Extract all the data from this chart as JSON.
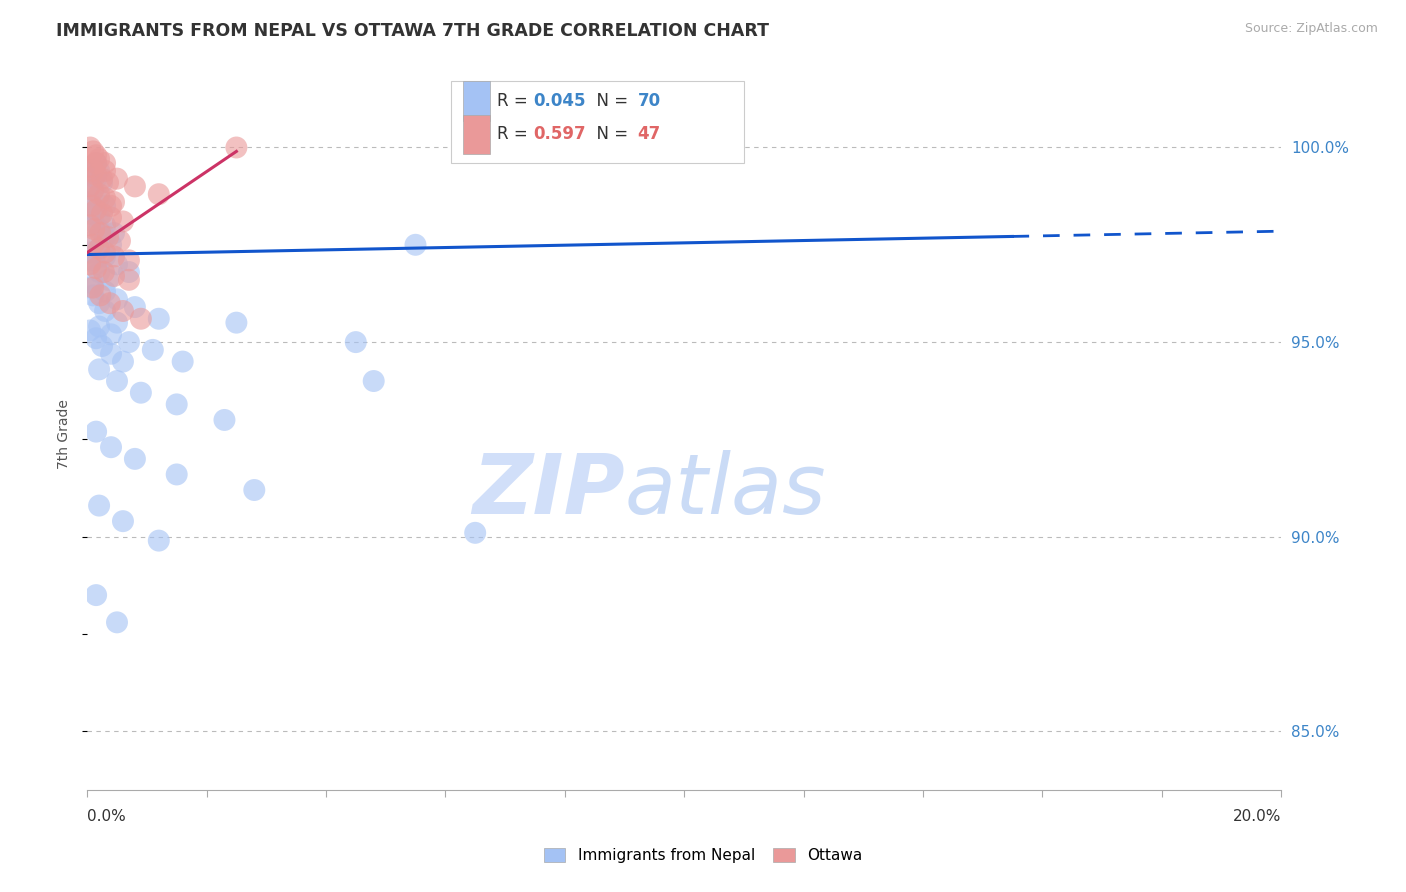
{
  "title": "IMMIGRANTS FROM NEPAL VS OTTAWA 7TH GRADE CORRELATION CHART",
  "source": "Source: ZipAtlas.com",
  "ylabel": "7th Grade",
  "y_ticks": [
    85.0,
    90.0,
    95.0,
    100.0
  ],
  "x_range": [
    0.0,
    20.0
  ],
  "y_range": [
    83.5,
    101.8
  ],
  "blue_R": 0.045,
  "blue_N": 70,
  "pink_R": 0.597,
  "pink_N": 47,
  "blue_color": "#a4c2f4",
  "pink_color": "#ea9999",
  "blue_line_color": "#1155cc",
  "pink_line_color": "#cc3366",
  "background_color": "#ffffff",
  "watermark_color": "#c9daf8",
  "blue_line_x0": 0.0,
  "blue_line_y0": 97.25,
  "blue_line_x1": 20.0,
  "blue_line_y1": 97.85,
  "blue_solid_end": 15.5,
  "pink_line_x0": 0.0,
  "pink_line_y0": 97.3,
  "pink_line_x1": 2.5,
  "pink_line_y1": 99.9,
  "blue_dots": [
    [
      0.05,
      99.5
    ],
    [
      0.1,
      99.3
    ],
    [
      0.15,
      99.6
    ],
    [
      0.2,
      99.4
    ],
    [
      0.25,
      99.1
    ],
    [
      0.05,
      99.0
    ],
    [
      0.1,
      98.9
    ],
    [
      0.15,
      99.2
    ],
    [
      0.2,
      98.7
    ],
    [
      0.3,
      98.5
    ],
    [
      0.05,
      98.3
    ],
    [
      0.1,
      98.1
    ],
    [
      0.2,
      97.9
    ],
    [
      0.3,
      97.7
    ],
    [
      0.4,
      97.5
    ],
    [
      0.05,
      97.3
    ],
    [
      0.1,
      97.1
    ],
    [
      0.15,
      97.0
    ],
    [
      0.2,
      96.8
    ],
    [
      0.35,
      96.6
    ],
    [
      0.05,
      96.4
    ],
    [
      0.1,
      96.2
    ],
    [
      0.2,
      96.0
    ],
    [
      0.3,
      95.8
    ],
    [
      0.5,
      95.5
    ],
    [
      0.05,
      95.3
    ],
    [
      0.15,
      95.1
    ],
    [
      0.25,
      94.9
    ],
    [
      0.4,
      94.7
    ],
    [
      0.6,
      94.5
    ],
    [
      0.05,
      98.6
    ],
    [
      0.1,
      98.4
    ],
    [
      0.2,
      98.2
    ],
    [
      0.3,
      98.0
    ],
    [
      0.45,
      97.8
    ],
    [
      0.1,
      97.6
    ],
    [
      0.2,
      97.4
    ],
    [
      0.3,
      97.2
    ],
    [
      0.5,
      97.0
    ],
    [
      0.7,
      96.8
    ],
    [
      0.1,
      96.5
    ],
    [
      0.3,
      96.3
    ],
    [
      0.5,
      96.1
    ],
    [
      0.8,
      95.9
    ],
    [
      1.2,
      95.6
    ],
    [
      0.2,
      95.4
    ],
    [
      0.4,
      95.2
    ],
    [
      0.7,
      95.0
    ],
    [
      1.1,
      94.8
    ],
    [
      1.6,
      94.5
    ],
    [
      0.2,
      94.3
    ],
    [
      0.5,
      94.0
    ],
    [
      0.9,
      93.7
    ],
    [
      1.5,
      93.4
    ],
    [
      2.3,
      93.0
    ],
    [
      0.15,
      92.7
    ],
    [
      0.4,
      92.3
    ],
    [
      0.8,
      92.0
    ],
    [
      1.5,
      91.6
    ],
    [
      2.8,
      91.2
    ],
    [
      0.2,
      90.8
    ],
    [
      0.6,
      90.4
    ],
    [
      1.2,
      89.9
    ],
    [
      2.5,
      95.5
    ],
    [
      4.5,
      95.0
    ],
    [
      0.15,
      88.5
    ],
    [
      0.5,
      87.8
    ],
    [
      4.8,
      94.0
    ],
    [
      6.5,
      90.1
    ],
    [
      5.5,
      97.5
    ]
  ],
  "pink_dots": [
    [
      0.05,
      100.0
    ],
    [
      0.1,
      99.9
    ],
    [
      0.15,
      99.8
    ],
    [
      0.2,
      99.7
    ],
    [
      0.3,
      99.6
    ],
    [
      0.05,
      99.5
    ],
    [
      0.1,
      99.4
    ],
    [
      0.15,
      99.3
    ],
    [
      0.25,
      99.2
    ],
    [
      0.35,
      99.1
    ],
    [
      0.05,
      99.0
    ],
    [
      0.1,
      98.9
    ],
    [
      0.2,
      98.8
    ],
    [
      0.3,
      98.7
    ],
    [
      0.45,
      98.6
    ],
    [
      0.08,
      98.5
    ],
    [
      0.15,
      98.4
    ],
    [
      0.25,
      98.3
    ],
    [
      0.4,
      98.2
    ],
    [
      0.6,
      98.1
    ],
    [
      0.05,
      98.0
    ],
    [
      0.12,
      97.9
    ],
    [
      0.22,
      97.8
    ],
    [
      0.35,
      97.7
    ],
    [
      0.55,
      97.6
    ],
    [
      0.1,
      97.5
    ],
    [
      0.2,
      97.4
    ],
    [
      0.3,
      97.3
    ],
    [
      0.45,
      97.2
    ],
    [
      0.7,
      97.1
    ],
    [
      0.05,
      97.0
    ],
    [
      0.15,
      96.9
    ],
    [
      0.28,
      96.8
    ],
    [
      0.45,
      96.7
    ],
    [
      0.7,
      96.6
    ],
    [
      0.1,
      96.4
    ],
    [
      0.22,
      96.2
    ],
    [
      0.38,
      96.0
    ],
    [
      0.6,
      95.8
    ],
    [
      0.9,
      95.6
    ],
    [
      0.15,
      99.6
    ],
    [
      0.3,
      99.4
    ],
    [
      0.5,
      99.2
    ],
    [
      0.8,
      99.0
    ],
    [
      1.2,
      98.8
    ],
    [
      2.5,
      100.0
    ],
    [
      0.4,
      98.5
    ]
  ]
}
